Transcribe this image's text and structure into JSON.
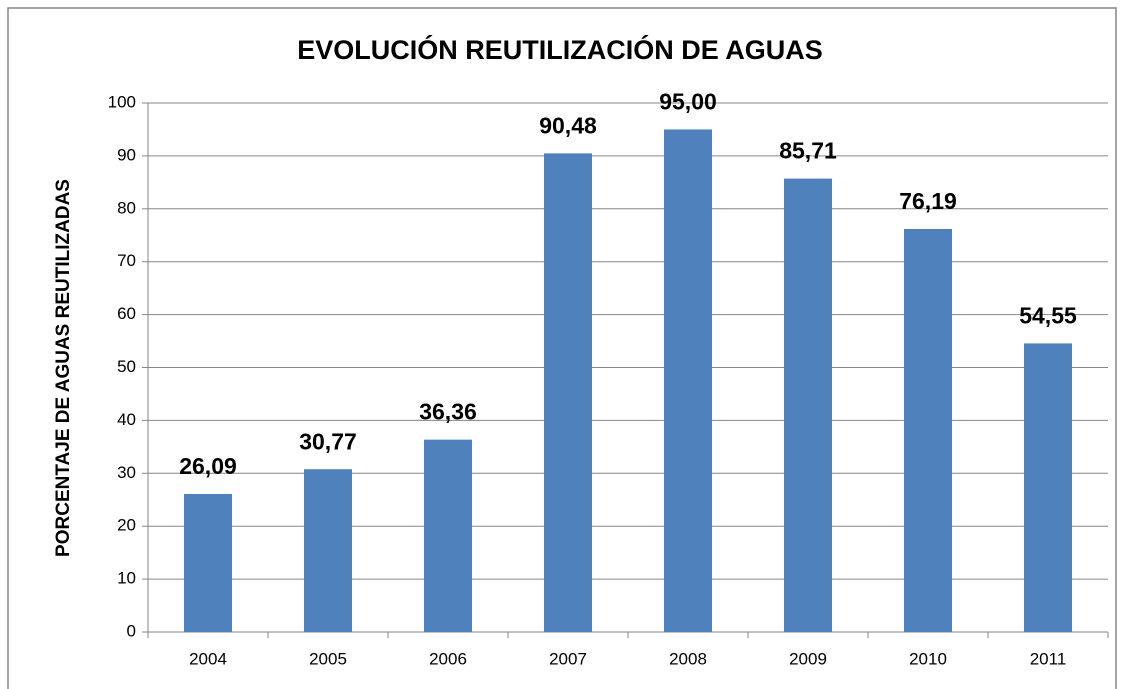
{
  "chart_data": {
    "type": "bar",
    "title": "EVOLUCIÓN REUTILIZACIÓN DE AGUAS",
    "y_label": "PORCENTAJE DE AGUAS REUTILIZADAS",
    "categories": [
      "2004",
      "2005",
      "2006",
      "2007",
      "2008",
      "2009",
      "2010",
      "2011"
    ],
    "values": [
      26.09,
      30.77,
      36.36,
      90.48,
      95.0,
      85.71,
      76.19,
      54.55
    ],
    "value_labels": [
      "26,09",
      "30,77",
      "36,36",
      "90,48",
      "95,00",
      "85,71",
      "76,19",
      "54,55"
    ],
    "color": "#4f81bd",
    "ylim": [
      0,
      100
    ],
    "yticks": [
      0,
      10,
      20,
      30,
      40,
      50,
      60,
      70,
      80,
      90,
      100
    ],
    "grid": true
  }
}
